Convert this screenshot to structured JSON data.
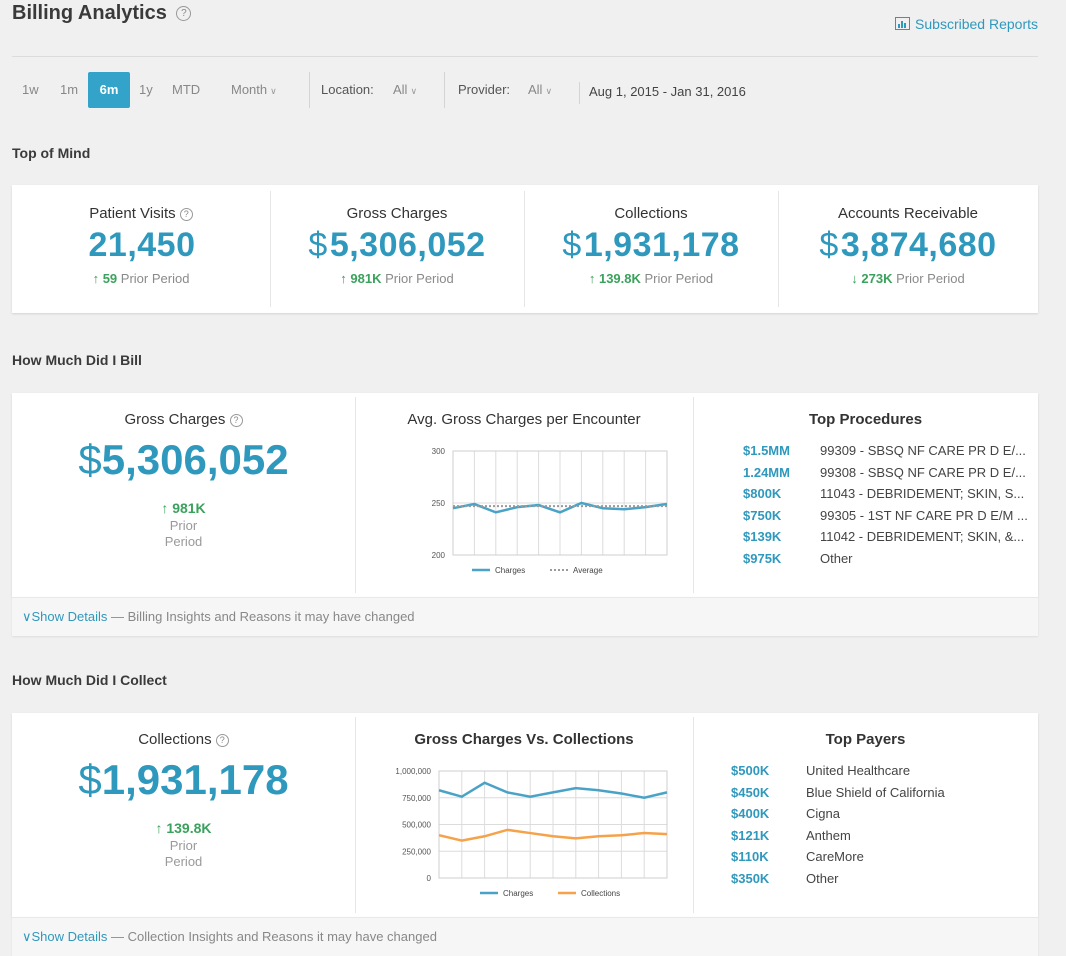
{
  "header": {
    "title": "Billing Analytics",
    "help": "?",
    "subscribed_reports": "Subscribed Reports"
  },
  "filters": {
    "ranges": [
      "1w",
      "1m",
      "6m",
      "1y",
      "MTD"
    ],
    "active_range": "6m",
    "granularity": "Month",
    "location_label": "Location:",
    "location_value": "All",
    "provider_label": "Provider:",
    "provider_value": "All",
    "date_range": "Aug 1, 2015 - Jan 31, 2016"
  },
  "top_of_mind": {
    "title": "Top of Mind",
    "prior_label": "Prior Period",
    "metrics": [
      {
        "label": "Patient Visits",
        "currency": "",
        "value": "21,450",
        "direction": "↑",
        "change": "59"
      },
      {
        "label": "Gross Charges",
        "currency": "$",
        "value": "5,306,052",
        "direction": "↑",
        "change": "981K"
      },
      {
        "label": "Collections",
        "currency": "$",
        "value": "1,931,178",
        "direction": "↑",
        "change": "139.8K"
      },
      {
        "label": "Accounts Receivable",
        "currency": "$",
        "value": "3,874,680",
        "direction": "↓",
        "change": "273K"
      }
    ]
  },
  "bill": {
    "section_title": "How Much Did I Bill",
    "kpi_label": "Gross Charges",
    "currency": "$",
    "kpi_value": "5,306,052",
    "kpi_change": "↑ 981K",
    "prior_line1": "Prior",
    "prior_line2": "Period",
    "chart_title": "Avg. Gross Charges per Encounter",
    "procedures_title": "Top Procedures",
    "procedures": [
      {
        "amount": "$1.5MM",
        "name": "99309 - SBSQ NF CARE PR D E/..."
      },
      {
        "amount": "1.24MM",
        "name": "99308 - SBSQ NF CARE PR D E/..."
      },
      {
        "amount": "$800K",
        "name": "11043 - DEBRIDEMENT; SKIN, S..."
      },
      {
        "amount": "$750K",
        "name": "99305 - 1ST NF CARE PR D E/M ..."
      },
      {
        "amount": "$139K",
        "name": "11042 - DEBRIDEMENT; SKIN, &..."
      },
      {
        "amount": "$975K",
        "name": "Other"
      }
    ],
    "show_details": "Show Details",
    "details_text": "— Billing Insights and Reasons it may have changed"
  },
  "collect": {
    "section_title": "How Much Did I Collect",
    "kpi_label": "Collections",
    "currency": "$",
    "kpi_value": "1,931,178",
    "kpi_change": "↑ 139.8K",
    "prior_line1": "Prior",
    "prior_line2": "Period",
    "chart_title": "Gross Charges Vs. Collections",
    "payers_title": "Top Payers",
    "payers": [
      {
        "amount": "$500K",
        "name": "United Healthcare"
      },
      {
        "amount": "$450K",
        "name": "Blue Shield of California"
      },
      {
        "amount": "$400K",
        "name": "Cigna"
      },
      {
        "amount": "$121K",
        "name": "Anthem"
      },
      {
        "amount": "$110K",
        "name": "CareMore"
      },
      {
        "amount": "$350K",
        "name": "Other"
      }
    ],
    "show_details": "Show Details",
    "details_text": "— Collection Insights and Reasons it may have changed"
  },
  "colors": {
    "accent": "#2f98bd",
    "positive": "#3aa25c",
    "charges_line": "#4aa3c6",
    "collections_line": "#f5a24a"
  },
  "chart_data": [
    {
      "type": "line",
      "title": "Avg. Gross Charges per Encounter",
      "ylim": [
        200,
        300
      ],
      "yticks": [
        "300",
        "250",
        "200"
      ],
      "grid": true,
      "legend_position": "bottom",
      "series": [
        {
          "name": "Charges",
          "values": [
            245,
            249,
            241,
            246,
            248,
            241,
            250,
            245,
            244,
            246,
            249
          ]
        },
        {
          "name": "Average",
          "values": [
            247,
            247,
            247,
            247,
            247,
            247,
            247,
            247,
            247,
            247,
            247
          ]
        }
      ]
    },
    {
      "type": "line",
      "title": "Gross Charges Vs. Collections",
      "ylim": [
        0,
        1000000
      ],
      "yticks": [
        "1,000,000",
        "750,000",
        "500,000",
        "250,000",
        "0"
      ],
      "grid": true,
      "legend_position": "bottom",
      "series": [
        {
          "name": "Charges",
          "values": [
            820000,
            760000,
            890000,
            800000,
            760000,
            800000,
            840000,
            820000,
            790000,
            750000,
            800000
          ]
        },
        {
          "name": "Collections",
          "values": [
            400000,
            350000,
            390000,
            450000,
            420000,
            390000,
            370000,
            390000,
            400000,
            420000,
            410000
          ]
        }
      ]
    }
  ]
}
